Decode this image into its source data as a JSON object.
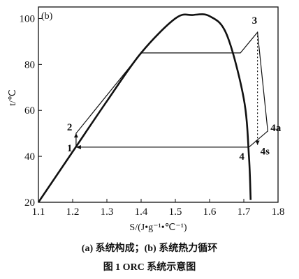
{
  "chart_data": {
    "type": "line",
    "panel_label": "(b)",
    "xlabel": "S/(J•g⁻¹•℃⁻¹)",
    "ylabel": "t/℃",
    "xlim": [
      1.1,
      1.8
    ],
    "ylim": [
      20,
      105
    ],
    "x_ticks": [
      "1.1",
      "1.2",
      "1.3",
      "1.4",
      "1.5",
      "1.6",
      "1.7",
      "1.8"
    ],
    "y_ticks": [
      "20",
      "40",
      "60",
      "80",
      "100"
    ],
    "grid": false,
    "series": [
      {
        "kind": "saturation-dome",
        "x": [
          1.1,
          1.2,
          1.3,
          1.4,
          1.5,
          1.55,
          1.6,
          1.65,
          1.7,
          1.715,
          1.72
        ],
        "y": [
          20,
          42,
          64,
          85,
          100,
          101.5,
          101,
          93,
          65,
          40,
          21
        ]
      },
      {
        "kind": "cycle",
        "x": [
          1.21,
          1.21,
          1.4,
          1.69,
          1.74,
          1.77,
          1.715,
          1.21
        ],
        "y": [
          44,
          50,
          85,
          85,
          94,
          51,
          44,
          44
        ]
      },
      {
        "kind": "isentropic-expansion",
        "x": [
          1.74,
          1.74
        ],
        "y": [
          94,
          45
        ]
      }
    ],
    "point_labels": [
      {
        "text": "1",
        "x": 1.21,
        "y": 44
      },
      {
        "text": "2",
        "x": 1.21,
        "y": 50
      },
      {
        "text": "3",
        "x": 1.74,
        "y": 94
      },
      {
        "text": "4",
        "x": 1.715,
        "y": 44
      },
      {
        "text": "4s",
        "x": 1.74,
        "y": 45
      },
      {
        "text": "4a",
        "x": 1.77,
        "y": 51
      }
    ]
  },
  "captions": {
    "sub": "(a) 系统构成；(b) 系统热力循环",
    "main": "图 1   ORC 系统示意图"
  }
}
